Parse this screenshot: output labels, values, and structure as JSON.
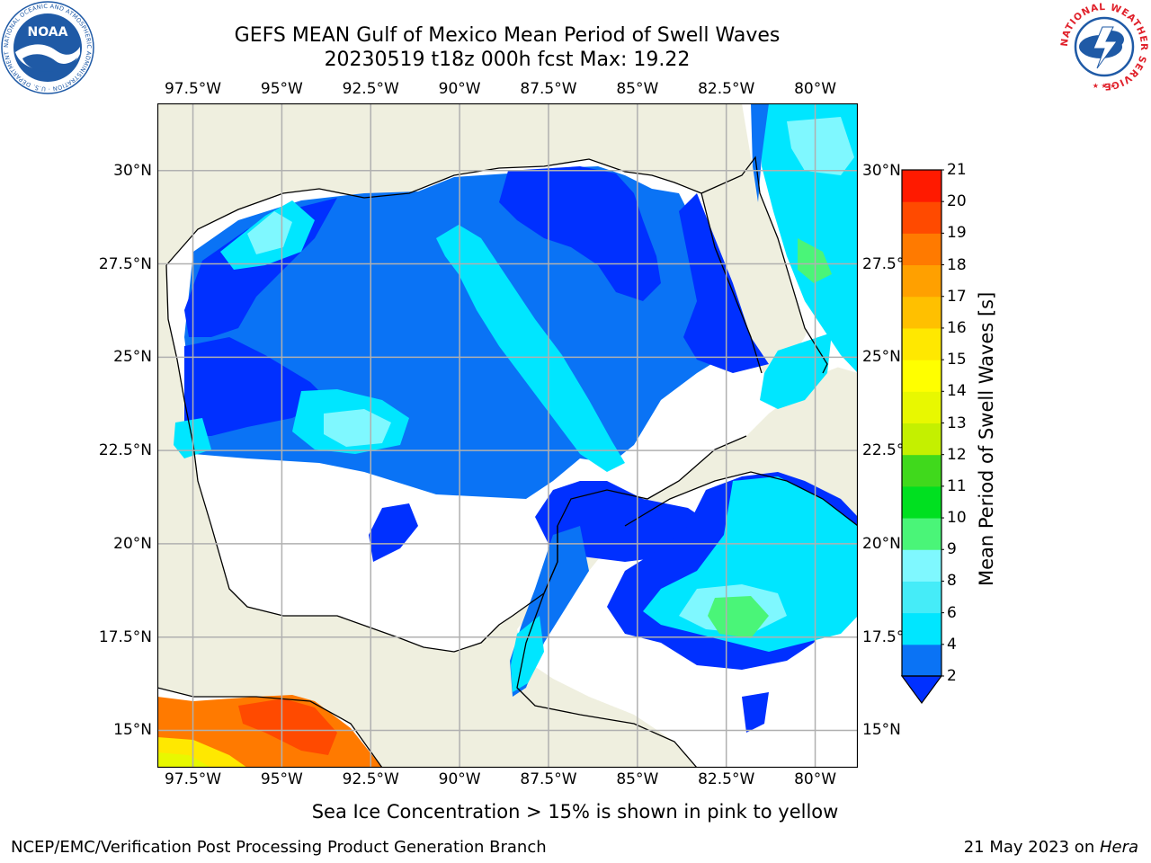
{
  "title": {
    "line1": "GEFS MEAN Gulf of Mexico Mean Period of Swell Waves",
    "line2": "20230519 t18z 000h fcst   Max: 19.22"
  },
  "logos": {
    "left": {
      "text": "NOAA",
      "ring_text": "NATIONAL OCEANIC AND ATMOSPHERIC ADMINISTRATION · U.S. DEPARTMENT OF COMMERCE",
      "color": "#1f5aa6"
    },
    "right": {
      "ring_text": "NATIONAL WEATHER SERVICE",
      "color": "#e0202a",
      "accent": "#1f5aa6"
    }
  },
  "chart_data": {
    "type": "heatmap",
    "title": "GEFS MEAN Gulf of Mexico Mean Period of Swell Waves",
    "subtitle": "20230519 t18z 000h fcst   Max: 19.22",
    "max_value": 19.22,
    "xlim": [
      -98.5,
      -78.8
    ],
    "ylim": [
      14.0,
      31.8
    ],
    "lon_ticks": [
      -97.5,
      -95,
      -92.5,
      -90,
      -87.5,
      -85,
      -82.5,
      -80
    ],
    "lon_tick_labels": [
      "97.5°W",
      "95°W",
      "92.5°W",
      "90°W",
      "87.5°W",
      "85°W",
      "82.5°W",
      "80°W"
    ],
    "lat_ticks": [
      30,
      27.5,
      25,
      22.5,
      20,
      17.5,
      15
    ],
    "lat_tick_labels": [
      "30°N",
      "27.5°N",
      "25°N",
      "22.5°N",
      "20°N",
      "17.5°N",
      "15°N"
    ],
    "grid": true,
    "colorbar": {
      "label": "Mean Period of Swell Waves [s]",
      "ticks": [
        2,
        4,
        6,
        8,
        9,
        10,
        11,
        12,
        13,
        14,
        15,
        16,
        17,
        18,
        19,
        20,
        21
      ],
      "colors": [
        "#0a73f5",
        "#00e6ff",
        "#45ecf8",
        "#7ff8ff",
        "#4af578",
        "#00e020",
        "#40d91c",
        "#c4f000",
        "#e8f800",
        "#ffff00",
        "#ffe800",
        "#ffc000",
        "#ffa000",
        "#ff7a00",
        "#ff4a00",
        "#ff1a00"
      ],
      "extend_min_color": "#0030ff",
      "extend": "min"
    },
    "annotation": "Sea Ice Concentration > 15% is shown in pink to yellow"
  },
  "footer": {
    "left": "NCEP/EMC/Verification Post Processing Product Generation Branch",
    "right_prefix": "21 May 2023 on ",
    "right_host": "Hera"
  }
}
